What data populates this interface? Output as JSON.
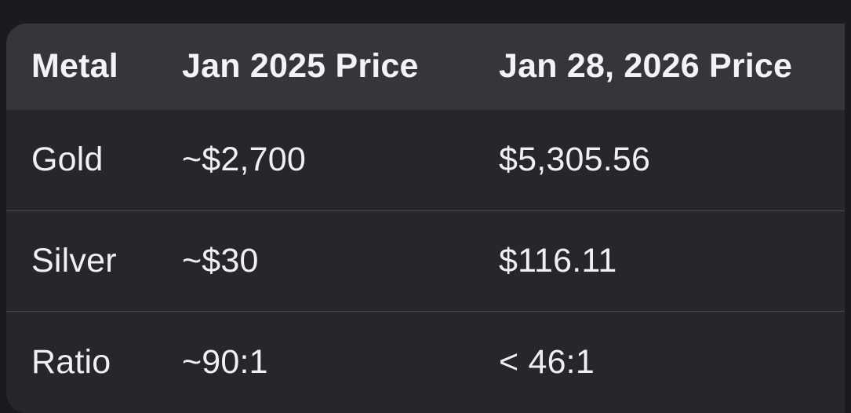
{
  "table": {
    "headers": [
      "Metal",
      "Jan 2025 Price",
      "Jan 28, 2026 Price"
    ],
    "rows": [
      [
        "Gold",
        "~$2,700",
        "$5,305.56"
      ],
      [
        "Silver",
        "~$30",
        "$116.11"
      ],
      [
        "Ratio",
        "~90:1",
        "< 46:1"
      ]
    ]
  },
  "colors": {
    "page_background": "#1a1b1e",
    "header_background": "#35363a",
    "body_background": "#26272b",
    "divider": "#48494d",
    "text": "#eef0f2"
  }
}
